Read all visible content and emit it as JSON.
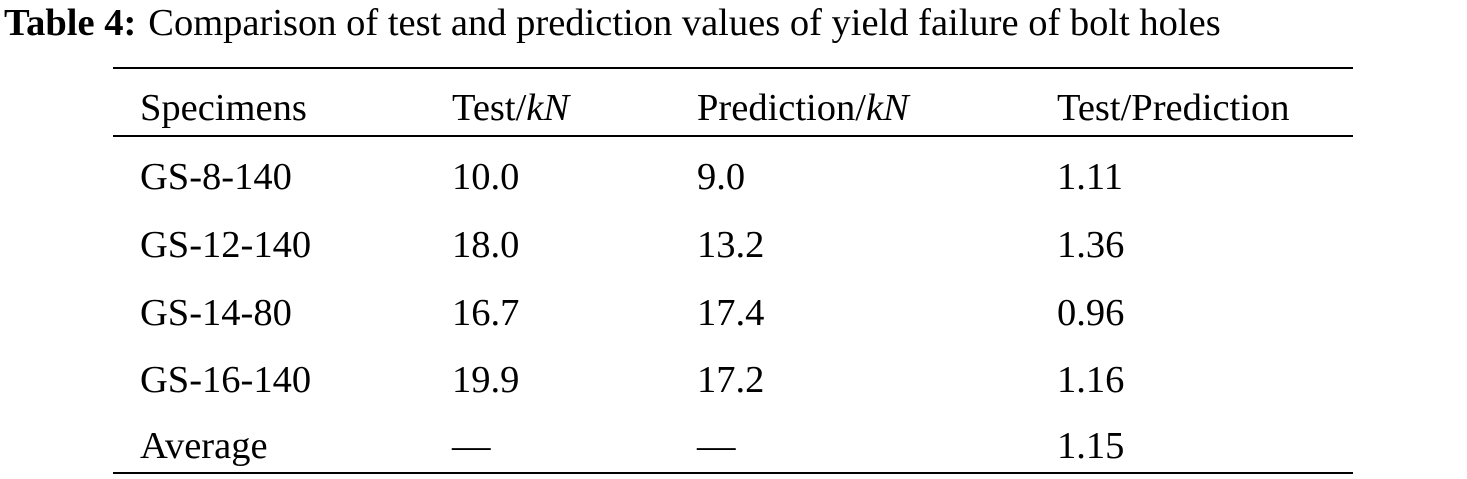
{
  "caption": {
    "label": "Table 4:",
    "text": "Comparison of test and prediction values of yield failure of bolt holes"
  },
  "table": {
    "header": [
      [
        "Specimens"
      ],
      [
        "Test/",
        "kN"
      ],
      [
        "Prediction/",
        "kN"
      ],
      [
        "Test/Prediction"
      ]
    ],
    "rows": [
      [
        "GS-8-140",
        "10.0",
        "9.0",
        "1.11"
      ],
      [
        "GS-12-140",
        "18.0",
        "13.2",
        "1.36"
      ],
      [
        "GS-14-80",
        "16.7",
        "17.4",
        "0.96"
      ],
      [
        "GS-16-140",
        "19.9",
        "17.2",
        "1.16"
      ],
      [
        "Average",
        "—",
        "—",
        "1.15"
      ]
    ]
  }
}
